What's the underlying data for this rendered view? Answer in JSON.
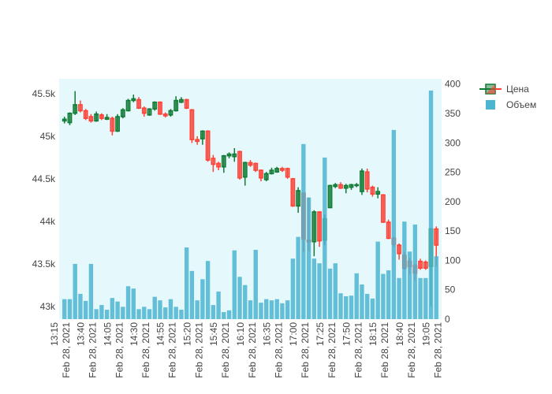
{
  "chart_data": {
    "type": "candlestick",
    "background": "#e5f9fc",
    "x": [
      "2021-02-28 13:20",
      "2021-02-28 13:25",
      "2021-02-28 13:30",
      "2021-02-28 13:35",
      "2021-02-28 13:40",
      "2021-02-28 13:45",
      "2021-02-28 13:50",
      "2021-02-28 13:55",
      "2021-02-28 14:00",
      "2021-02-28 14:05",
      "2021-02-28 14:10",
      "2021-02-28 14:15",
      "2021-02-28 14:20",
      "2021-02-28 14:25",
      "2021-02-28 14:30",
      "2021-02-28 14:35",
      "2021-02-28 14:40",
      "2021-02-28 14:45",
      "2021-02-28 14:50",
      "2021-02-28 14:55",
      "2021-02-28 15:00",
      "2021-02-28 15:05",
      "2021-02-28 15:10",
      "2021-02-28 15:15",
      "2021-02-28 15:20",
      "2021-02-28 15:25",
      "2021-02-28 15:30",
      "2021-02-28 15:35",
      "2021-02-28 15:40",
      "2021-02-28 15:45",
      "2021-02-28 15:50",
      "2021-02-28 15:55",
      "2021-02-28 16:00",
      "2021-02-28 16:05",
      "2021-02-28 16:10",
      "2021-02-28 16:15",
      "2021-02-28 16:20",
      "2021-02-28 16:25",
      "2021-02-28 16:30",
      "2021-02-28 16:35",
      "2021-02-28 16:40",
      "2021-02-28 16:45",
      "2021-02-28 16:50",
      "2021-02-28 16:55",
      "2021-02-28 17:00",
      "2021-02-28 17:05",
      "2021-02-28 17:10",
      "2021-02-28 17:15",
      "2021-02-28 17:20",
      "2021-02-28 17:25",
      "2021-02-28 17:30",
      "2021-02-28 17:35",
      "2021-02-28 17:40",
      "2021-02-28 17:45",
      "2021-02-28 17:50",
      "2021-02-28 17:55",
      "2021-02-28 18:00",
      "2021-02-28 18:05",
      "2021-02-28 18:10",
      "2021-02-28 18:15",
      "2021-02-28 18:20",
      "2021-02-28 18:25",
      "2021-02-28 18:30",
      "2021-02-28 18:35",
      "2021-02-28 18:40",
      "2021-02-28 18:45",
      "2021-02-28 18:50",
      "2021-02-28 18:55",
      "2021-02-28 19:00",
      "2021-02-28 19:05",
      "2021-02-28 19:10"
    ],
    "xlim": [
      "2021-02-28 13:15",
      "2021-02-28 19:15"
    ],
    "xticks": [
      {
        "value": "2021-02-28 13:15",
        "label": "13:15\nFeb 28, 2021"
      },
      {
        "value": "2021-02-28 13:40",
        "label": "13:40\nFeb 28, 2021"
      },
      {
        "value": "2021-02-28 14:05",
        "label": "14:05\nFeb 28, 2021"
      },
      {
        "value": "2021-02-28 14:30",
        "label": "14:30\nFeb 28, 2021"
      },
      {
        "value": "2021-02-28 14:55",
        "label": "14:55\nFeb 28, 2021"
      },
      {
        "value": "2021-02-28 15:20",
        "label": "15:20\nFeb 28, 2021"
      },
      {
        "value": "2021-02-28 15:45",
        "label": "15:45\nFeb 28, 2021"
      },
      {
        "value": "2021-02-28 16:10",
        "label": "16:10\nFeb 28, 2021"
      },
      {
        "value": "2021-02-28 16:35",
        "label": "16:35\nFeb 28, 2021"
      },
      {
        "value": "2021-02-28 17:00",
        "label": "17:00\nFeb 28, 2021"
      },
      {
        "value": "2021-02-28 17:25",
        "label": "17:25\nFeb 28, 2021"
      },
      {
        "value": "2021-02-28 17:50",
        "label": "17:50\nFeb 28, 2021"
      },
      {
        "value": "2021-02-28 18:15",
        "label": "18:15\nFeb 28, 2021"
      },
      {
        "value": "2021-02-28 18:40",
        "label": "18:40\nFeb 28, 2021"
      },
      {
        "value": "2021-02-28 19:05",
        "label": "19:05\nFeb 28, 2021"
      }
    ],
    "ylim": [
      42850,
      45675
    ],
    "yticks": [
      {
        "value": 43000,
        "label": "43k"
      },
      {
        "value": 43500,
        "label": "43.5k"
      },
      {
        "value": 44000,
        "label": "44k"
      },
      {
        "value": 44500,
        "label": "44.5k"
      },
      {
        "value": 45000,
        "label": "45k"
      },
      {
        "value": 45500,
        "label": "45.5k"
      }
    ],
    "y2lim": [
      0,
      409
    ],
    "y2ticks": [
      0,
      50,
      100,
      150,
      200,
      250,
      300,
      350,
      400
    ],
    "series": [
      {
        "name": "Цена",
        "type": "candlestick",
        "increasing_color": "#0f7a33",
        "decreasing_color": "#ff4136",
        "open": [
          45180,
          45160,
          45270,
          45370,
          45300,
          45230,
          45180,
          45250,
          45200,
          45210,
          45060,
          45230,
          45300,
          45420,
          45430,
          45330,
          45250,
          45320,
          45400,
          45260,
          45250,
          45300,
          45400,
          45430,
          45310,
          44960,
          44970,
          45060,
          44740,
          44680,
          44640,
          44770,
          44760,
          44820,
          44520,
          44690,
          44680,
          44600,
          44490,
          44560,
          44580,
          44620,
          44620,
          44500,
          44180,
          44330,
          43780,
          43760,
          44110,
          43780,
          44160,
          44410,
          44430,
          44390,
          44400,
          44420,
          44350,
          44580,
          44400,
          44320,
          44310,
          43990,
          43800,
          43720,
          43600,
          43530,
          43480,
          43530,
          43520,
          43470,
          43910
        ],
        "high": [
          45230,
          45280,
          45530,
          45420,
          45320,
          45260,
          45290,
          45270,
          45260,
          45230,
          45260,
          45330,
          45440,
          45490,
          45460,
          45350,
          45330,
          45410,
          45410,
          45280,
          45320,
          45470,
          45460,
          45440,
          45320,
          45000,
          45070,
          45070,
          44780,
          44700,
          44780,
          44810,
          44860,
          44830,
          44700,
          44720,
          44690,
          44610,
          44580,
          44630,
          44640,
          44640,
          44630,
          44510,
          44400,
          44340,
          44280,
          44130,
          44120,
          44080,
          44430,
          44450,
          44460,
          44440,
          44440,
          44450,
          44620,
          44620,
          44420,
          44400,
          44320,
          44020,
          43820,
          43740,
          43640,
          43570,
          43500,
          43560,
          43540,
          43920,
          43940
        ],
        "low": [
          45150,
          45130,
          45250,
          45280,
          45190,
          45160,
          45170,
          45190,
          45190,
          45010,
          45050,
          45210,
          45290,
          45400,
          45320,
          45230,
          45240,
          45300,
          45250,
          45220,
          45230,
          45290,
          45390,
          45320,
          44920,
          44900,
          44900,
          44700,
          44580,
          44600,
          44570,
          44740,
          44700,
          44490,
          44420,
          44640,
          44580,
          44470,
          44470,
          44550,
          44570,
          44580,
          44500,
          44170,
          44100,
          43640,
          43650,
          43590,
          43700,
          43720,
          44160,
          44390,
          44380,
          44330,
          44370,
          44400,
          44310,
          44340,
          44290,
          44270,
          43980,
          43790,
          43700,
          43550,
          43430,
          43380,
          43300,
          43430,
          43430,
          43000,
          43470
        ],
        "close": [
          45200,
          45270,
          45370,
          45300,
          45210,
          45180,
          45260,
          45210,
          45220,
          45060,
          45230,
          45310,
          45420,
          45440,
          45330,
          45270,
          45320,
          45400,
          45260,
          45240,
          45300,
          45420,
          45430,
          45330,
          44960,
          44940,
          45060,
          44720,
          44670,
          44640,
          44770,
          44790,
          44790,
          44510,
          44690,
          44660,
          44600,
          44510,
          44560,
          44600,
          44620,
          44600,
          44520,
          44180,
          44360,
          43790,
          43760,
          44110,
          43770,
          44030,
          44420,
          44430,
          44390,
          44420,
          44430,
          44430,
          44590,
          44380,
          44320,
          44350,
          43990,
          43800,
          43730,
          43620,
          43450,
          43470,
          43390,
          43450,
          43450,
          43910,
          43720
        ]
      },
      {
        "name": "Объем",
        "type": "bar",
        "axis": "y2",
        "color": "#4cb5d0",
        "values": [
          34,
          34,
          94,
          43,
          31,
          94,
          17,
          24,
          16,
          36,
          30,
          21,
          56,
          52,
          17,
          21,
          17,
          38,
          32,
          20,
          34,
          21,
          16,
          122,
          82,
          32,
          68,
          99,
          24,
          47,
          12,
          15,
          117,
          72,
          58,
          32,
          118,
          28,
          34,
          32,
          34,
          27,
          32,
          103,
          140,
          298,
          207,
          103,
          95,
          275,
          86,
          95,
          44,
          39,
          40,
          78,
          59,
          43,
          35,
          132,
          77,
          83,
          322,
          70,
          166,
          115,
          161,
          70,
          70,
          389,
          107
        ]
      }
    ]
  }
}
